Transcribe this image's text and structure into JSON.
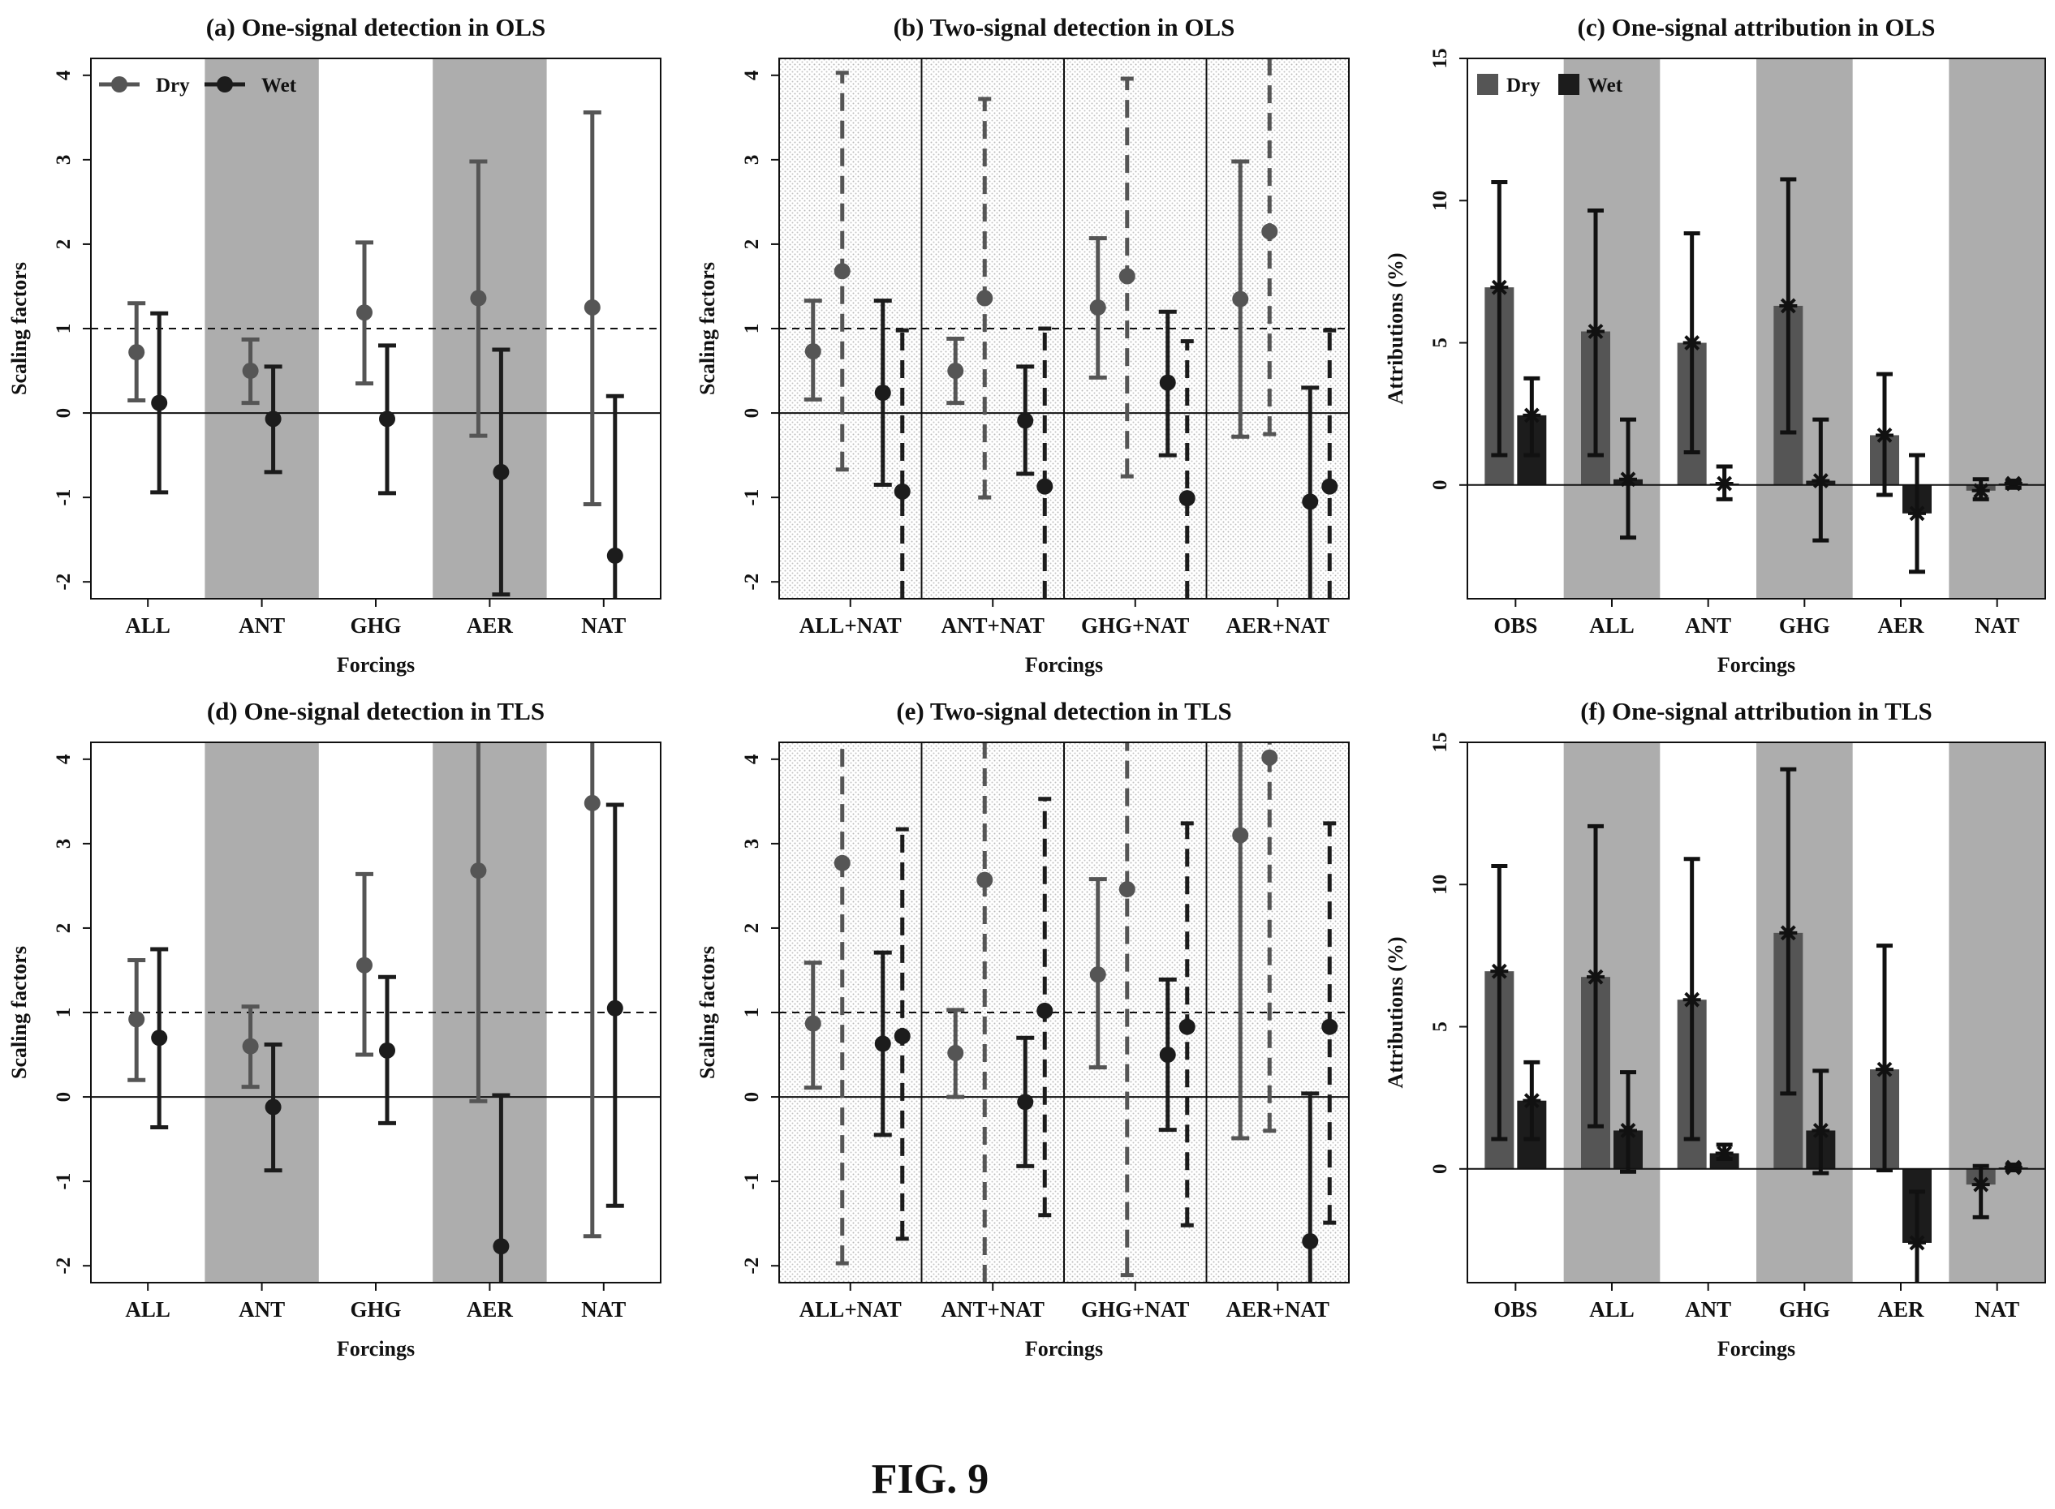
{
  "figure_label": "FIG. 9",
  "legend": {
    "dry": "Dry",
    "wet": "Wet"
  },
  "colors": {
    "dry": "#555555",
    "wet": "#1c1c1c",
    "band": "#adadad",
    "stipple": "#bdbdbd"
  },
  "chart_data": [
    {
      "panel": "a",
      "type": "errorbar",
      "title": "(a) One-signal detection in OLS",
      "xlabel": "Forcings",
      "ylabel": "Scaling factors",
      "ylim": [
        -2.2,
        4.2
      ],
      "yticks": [
        -2,
        -1,
        0,
        1,
        2,
        3,
        4
      ],
      "reference_line": 1,
      "categories": [
        "ALL",
        "ANT",
        "GHG",
        "AER",
        "NAT"
      ],
      "shaded_categories": [
        "ANT",
        "AER"
      ],
      "legend": true,
      "series": [
        {
          "name": "Dry",
          "best": [
            0.72,
            0.5,
            1.19,
            1.36,
            1.25
          ],
          "lower": [
            0.15,
            0.12,
            0.35,
            -0.27,
            -1.08
          ],
          "upper": [
            1.3,
            0.87,
            2.02,
            2.98,
            3.56
          ]
        },
        {
          "name": "Wet",
          "best": [
            0.12,
            -0.07,
            -0.07,
            -0.7,
            -1.69
          ],
          "lower": [
            -0.94,
            -0.7,
            -0.95,
            -2.15,
            -2.5
          ],
          "upper": [
            1.18,
            0.55,
            0.8,
            0.75,
            0.2
          ]
        }
      ]
    },
    {
      "panel": "b",
      "type": "errorbar",
      "title": "(b) Two-signal detection in OLS",
      "xlabel": "Forcings",
      "ylabel": "Scaling factors",
      "ylim": [
        -2.2,
        4.2
      ],
      "yticks": [
        -2,
        -1,
        0,
        1,
        2,
        3,
        4
      ],
      "reference_line": 1,
      "categories": [
        "ALL+NAT",
        "ANT+NAT",
        "GHG+NAT",
        "AER+NAT"
      ],
      "stippled": true,
      "bars_per_category": [
        {
          "style": "solid",
          "series": "Dry"
        },
        {
          "style": "dashed",
          "series": "Dry"
        },
        {
          "style": "solid",
          "series": "Wet"
        },
        {
          "style": "dashed",
          "series": "Wet"
        }
      ],
      "best": [
        [
          0.73,
          1.68,
          0.24,
          -0.93
        ],
        [
          0.5,
          1.36,
          -0.09,
          -0.87
        ],
        [
          1.25,
          1.62,
          0.36,
          -1.01
        ],
        [
          1.35,
          2.15,
          -1.05,
          -0.87
        ]
      ],
      "lower": [
        [
          0.16,
          -0.67,
          -0.85,
          -2.5
        ],
        [
          0.12,
          -1.0,
          -0.72,
          -2.5
        ],
        [
          0.42,
          -0.75,
          -0.5,
          -2.5
        ],
        [
          -0.28,
          -0.25,
          -2.5,
          -2.5
        ]
      ],
      "upper": [
        [
          1.33,
          4.03,
          1.33,
          0.98
        ],
        [
          0.88,
          3.72,
          0.55,
          1.0
        ],
        [
          2.07,
          3.96,
          1.2,
          0.85
        ],
        [
          2.98,
          4.5,
          0.3,
          0.98
        ]
      ]
    },
    {
      "panel": "c",
      "type": "bar",
      "title": "(c) One-signal attribution in OLS",
      "xlabel": "Forcings",
      "ylabel": "Attributions (%)",
      "ylim": [
        -4,
        15
      ],
      "yticks": [
        0,
        5,
        10,
        15
      ],
      "categories": [
        "OBS",
        "ALL",
        "ANT",
        "GHG",
        "AER",
        "NAT"
      ],
      "shaded_categories": [
        "ALL",
        "GHG",
        "NAT"
      ],
      "legend": true,
      "series": [
        {
          "name": "Dry",
          "values": [
            6.95,
            5.4,
            5.0,
            6.3,
            1.75,
            -0.2
          ],
          "lower": [
            1.05,
            1.05,
            1.15,
            1.85,
            -0.35,
            -0.5
          ],
          "upper": [
            10.65,
            9.65,
            8.85,
            10.75,
            3.9,
            0.2
          ]
        },
        {
          "name": "Wet",
          "values": [
            2.45,
            0.2,
            0.05,
            0.15,
            -1.0,
            0.05
          ],
          "lower": [
            1.05,
            -1.85,
            -0.5,
            -1.95,
            -3.05,
            -0.1
          ],
          "upper": [
            3.75,
            2.3,
            0.65,
            2.3,
            1.05,
            0.15
          ]
        }
      ]
    },
    {
      "panel": "d",
      "type": "errorbar",
      "title": "(d) One-signal detection in TLS",
      "xlabel": "Forcings",
      "ylabel": "Scaling factors",
      "ylim": [
        -2.2,
        4.2
      ],
      "yticks": [
        -2,
        -1,
        0,
        1,
        2,
        3,
        4
      ],
      "reference_line": 1,
      "categories": [
        "ALL",
        "ANT",
        "GHG",
        "AER",
        "NAT"
      ],
      "shaded_categories": [
        "ANT",
        "AER"
      ],
      "legend": false,
      "series": [
        {
          "name": "Dry",
          "best": [
            0.92,
            0.6,
            1.56,
            2.68,
            3.48
          ],
          "lower": [
            0.2,
            0.12,
            0.5,
            -0.05,
            -1.65
          ],
          "upper": [
            1.62,
            1.07,
            2.64,
            4.5,
            4.5
          ]
        },
        {
          "name": "Wet",
          "best": [
            0.7,
            -0.12,
            0.55,
            -1.77,
            1.05
          ],
          "lower": [
            -0.36,
            -0.87,
            -0.31,
            -2.5,
            -1.29
          ],
          "upper": [
            1.75,
            0.62,
            1.42,
            0.02,
            3.46
          ]
        }
      ]
    },
    {
      "panel": "e",
      "type": "errorbar",
      "title": "(e) Two-signal detection in TLS",
      "xlabel": "Forcings",
      "ylabel": "Scaling factors",
      "ylim": [
        -2.2,
        4.2
      ],
      "yticks": [
        -2,
        -1,
        0,
        1,
        2,
        3,
        4
      ],
      "reference_line": 1,
      "categories": [
        "ALL+NAT",
        "ANT+NAT",
        "GHG+NAT",
        "AER+NAT"
      ],
      "stippled": true,
      "bars_per_category": [
        {
          "style": "solid",
          "series": "Dry"
        },
        {
          "style": "dashed",
          "series": "Dry"
        },
        {
          "style": "solid",
          "series": "Wet"
        },
        {
          "style": "dashed",
          "series": "Wet"
        }
      ],
      "best": [
        [
          0.87,
          2.77,
          0.63,
          0.72
        ],
        [
          0.52,
          2.57,
          -0.06,
          1.02
        ],
        [
          1.45,
          2.46,
          0.5,
          0.83
        ],
        [
          3.1,
          4.02,
          -1.71,
          0.83
        ]
      ],
      "lower": [
        [
          0.11,
          -1.97,
          -0.45,
          -1.68
        ],
        [
          0.0,
          -2.5,
          -0.82,
          -1.4
        ],
        [
          0.35,
          -2.11,
          -0.39,
          -1.52
        ],
        [
          -0.49,
          -0.4,
          -2.5,
          -1.49
        ]
      ],
      "upper": [
        [
          1.59,
          4.5,
          1.71,
          3.17
        ],
        [
          1.03,
          4.5,
          0.7,
          3.53
        ],
        [
          2.58,
          4.5,
          1.39,
          3.24
        ],
        [
          4.5,
          4.5,
          0.04,
          3.24
        ]
      ]
    },
    {
      "panel": "f",
      "type": "bar",
      "title": "(f) One-signal attribution in TLS",
      "xlabel": "Forcings",
      "ylabel": "Attributions (%)",
      "ylim": [
        -4,
        15
      ],
      "yticks": [
        0,
        5,
        10,
        15
      ],
      "categories": [
        "OBS",
        "ALL",
        "ANT",
        "GHG",
        "AER",
        "NAT"
      ],
      "shaded_categories": [
        "ALL",
        "GHG",
        "NAT"
      ],
      "legend": false,
      "series": [
        {
          "name": "Dry",
          "values": [
            6.95,
            6.75,
            5.95,
            8.3,
            3.5,
            -0.55
          ],
          "lower": [
            1.05,
            1.5,
            1.05,
            2.65,
            -0.05,
            -1.7
          ],
          "upper": [
            10.65,
            12.05,
            10.9,
            14.05,
            7.85,
            0.1
          ]
        },
        {
          "name": "Wet",
          "values": [
            2.4,
            1.35,
            0.55,
            1.35,
            -2.6,
            0.05
          ],
          "lower": [
            1.05,
            -0.1,
            0.35,
            -0.15,
            -4.5,
            -0.05
          ],
          "upper": [
            3.75,
            3.4,
            0.85,
            3.45,
            -0.8,
            0.15
          ]
        }
      ]
    }
  ]
}
